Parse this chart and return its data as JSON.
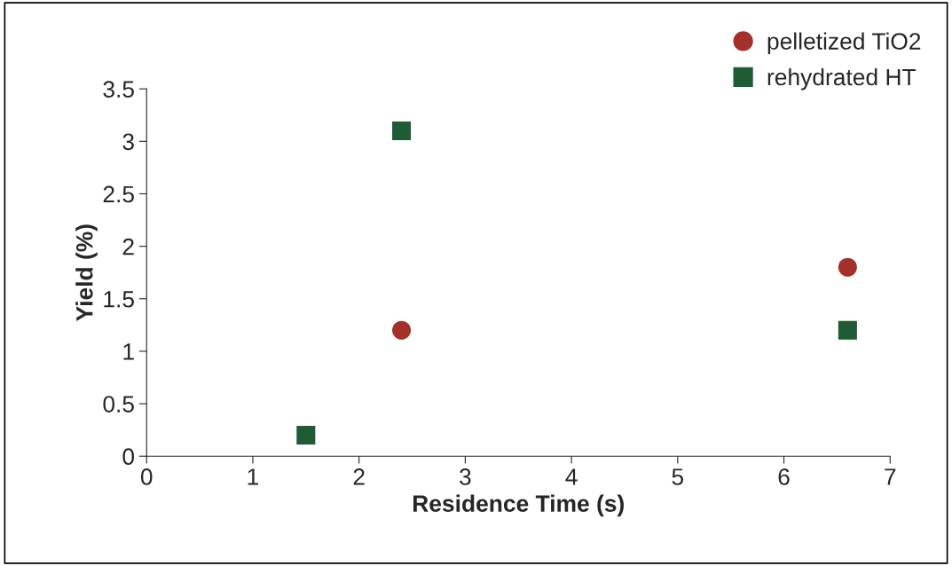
{
  "chart_data": {
    "type": "scatter",
    "xlabel": "Residence Time (s)",
    "ylabel": "Yield (%)",
    "series": [
      {
        "name": "pelletized TiO2",
        "color": "#a3302b",
        "marker": "circle",
        "x": [
          2.4,
          6.6
        ],
        "values": [
          1.2,
          1.8
        ]
      },
      {
        "name": "rehydrated HT",
        "color": "#1f5c35",
        "marker": "square",
        "x": [
          1.5,
          2.4,
          6.6
        ],
        "values": [
          0.2,
          3.1,
          1.2
        ]
      }
    ],
    "xlim": [
      0,
      7
    ],
    "xticks": [
      0,
      1,
      2,
      3,
      4,
      5,
      6,
      7
    ],
    "ylim": [
      0,
      3.5
    ],
    "yticks": [
      0,
      {
        "value": 0.5,
        "label": "0.5"
      },
      1,
      {
        "value": 1.5,
        "label": "1.5"
      },
      2,
      {
        "value": 2.5,
        "label": "2.5"
      },
      3,
      {
        "value": 3.5,
        "label": "3.5"
      }
    ],
    "grid": false,
    "legend": "top right"
  }
}
